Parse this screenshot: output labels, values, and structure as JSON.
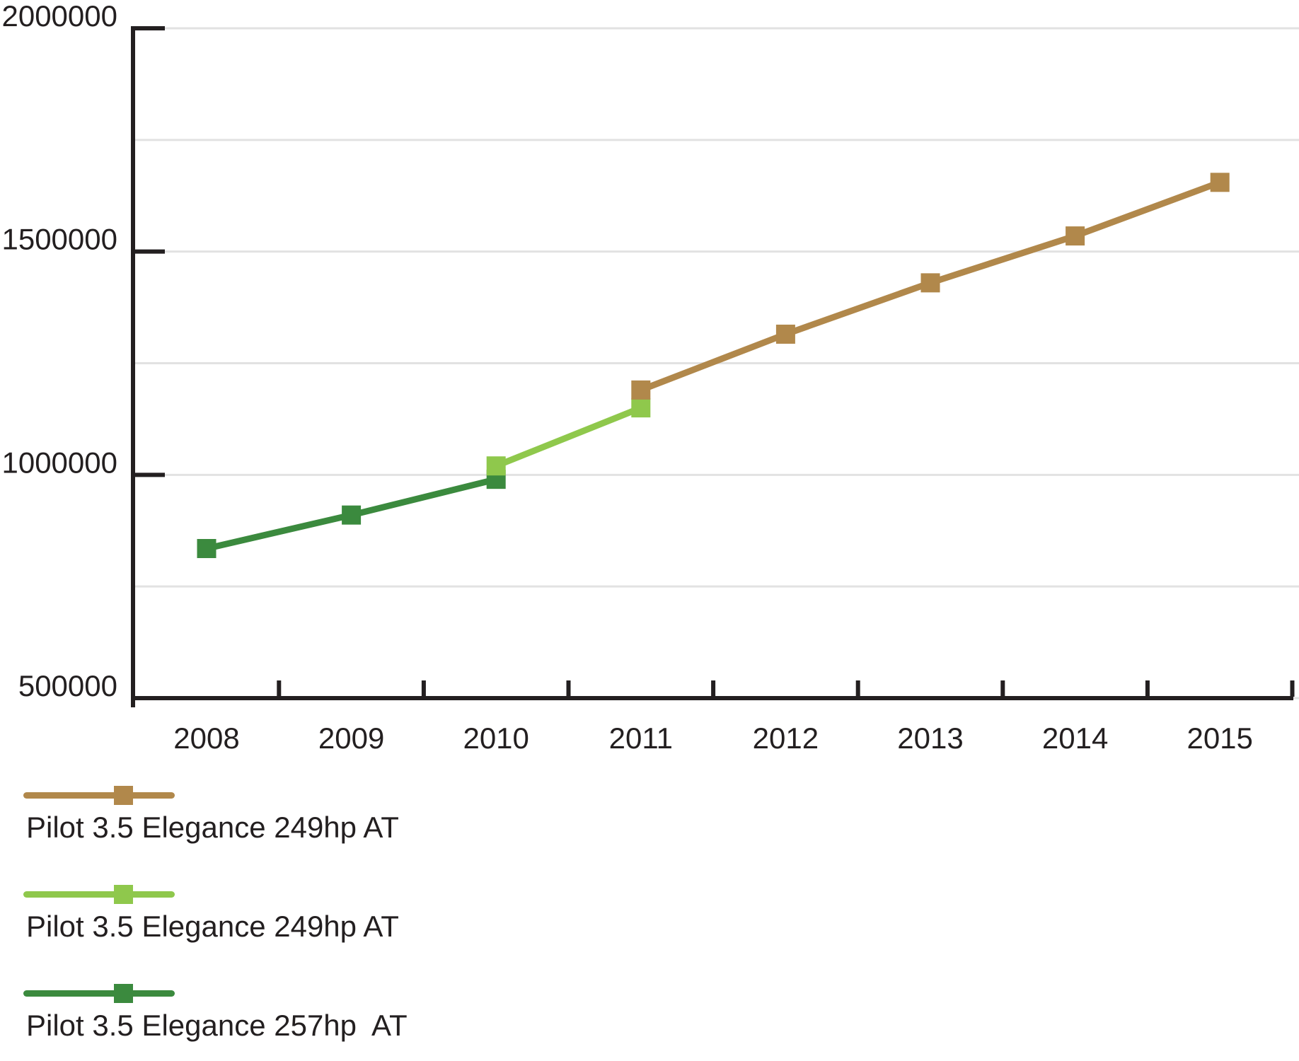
{
  "chart_data": {
    "type": "line",
    "title": "",
    "xlabel": "",
    "ylabel": "",
    "x_categories": [
      2008,
      2009,
      2010,
      2011,
      2012,
      2013,
      2014,
      2015
    ],
    "ylim": [
      500000,
      2000000
    ],
    "ytick_values": [
      500000,
      1000000,
      1500000,
      2000000
    ],
    "ytick_labels": [
      "500000",
      "1000000",
      "1500000",
      "2000000"
    ],
    "ygrid_step": 250000,
    "grid": "horizontal",
    "legend_position": "bottom-left",
    "marker": "square",
    "axis_color": "#231f20",
    "grid_color": "#e2e2e2",
    "series": [
      {
        "name": "Pilot 3.5 Elegance 249hp AT",
        "color": "#b1884b",
        "x": [
          2011,
          2012,
          2013,
          2014,
          2015
        ],
        "y": [
          1190000,
          1315000,
          1430000,
          1535000,
          1655000
        ]
      },
      {
        "name": "Pilot 3.5 Elegance 249hp AT",
        "color": "#8fc84c",
        "x": [
          2010,
          2011
        ],
        "y": [
          1020000,
          1150000
        ]
      },
      {
        "name": "Pilot 3.5 Elegance 257hp  AT",
        "color": "#3b8a3e",
        "x": [
          2008,
          2009,
          2010
        ],
        "y": [
          835000,
          910000,
          990000
        ]
      }
    ]
  }
}
